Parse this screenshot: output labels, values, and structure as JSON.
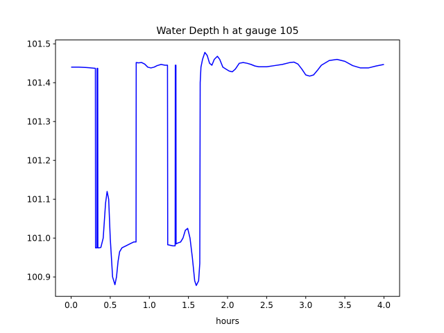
{
  "chart_data": {
    "type": "line",
    "title": "Water Depth h at gauge 105",
    "xlabel": "hours",
    "ylabel": "",
    "xlim": [
      -0.2,
      4.2
    ],
    "ylim": [
      100.85,
      101.51
    ],
    "xticks": [
      "0.0",
      "0.5",
      "1.0",
      "1.5",
      "2.0",
      "2.5",
      "3.0",
      "3.5",
      "4.0"
    ],
    "yticks": [
      "100.9",
      "101.0",
      "101.1",
      "101.2",
      "101.3",
      "101.4",
      "101.5"
    ],
    "grid": false,
    "legend": "none",
    "series": [
      {
        "color": "#0000ff",
        "x": [
          0.0,
          0.1,
          0.2,
          0.31,
          0.312,
          0.33,
          0.332,
          0.34,
          0.342,
          0.36,
          0.38,
          0.41,
          0.44,
          0.46,
          0.48,
          0.5,
          0.53,
          0.56,
          0.58,
          0.6,
          0.62,
          0.65,
          0.7,
          0.75,
          0.8,
          0.83,
          0.832,
          0.86,
          0.9,
          0.94,
          0.98,
          1.02,
          1.06,
          1.1,
          1.15,
          1.2,
          1.232,
          1.235,
          1.3,
          1.33,
          1.332,
          1.34,
          1.342,
          1.36,
          1.4,
          1.43,
          1.46,
          1.49,
          1.52,
          1.55,
          1.58,
          1.6,
          1.63,
          1.645,
          1.65,
          1.66,
          1.68,
          1.71,
          1.74,
          1.77,
          1.8,
          1.83,
          1.87,
          1.9,
          1.94,
          1.98,
          2.02,
          2.06,
          2.1,
          2.15,
          2.2,
          2.25,
          2.3,
          2.35,
          2.4,
          2.5,
          2.6,
          2.7,
          2.8,
          2.85,
          2.9,
          2.95,
          3.0,
          3.05,
          3.1,
          3.15,
          3.2,
          3.3,
          3.4,
          3.5,
          3.6,
          3.7,
          3.8,
          3.9,
          4.0
        ],
        "y": [
          101.44,
          101.44,
          101.439,
          101.437,
          100.975,
          100.975,
          101.437,
          101.437,
          100.975,
          100.975,
          100.976,
          101.0,
          101.09,
          101.12,
          101.1,
          101.0,
          100.9,
          100.88,
          100.9,
          100.94,
          100.965,
          100.975,
          100.98,
          100.985,
          100.99,
          100.99,
          101.452,
          101.451,
          101.452,
          101.448,
          101.44,
          101.438,
          101.44,
          101.444,
          101.447,
          101.445,
          101.445,
          100.983,
          100.98,
          100.98,
          101.445,
          101.445,
          100.985,
          100.987,
          100.99,
          101.0,
          101.02,
          101.025,
          101.0,
          100.95,
          100.89,
          100.878,
          100.89,
          100.935,
          101.4,
          101.44,
          101.46,
          101.478,
          101.47,
          101.45,
          101.445,
          101.46,
          101.468,
          101.46,
          101.44,
          101.435,
          101.43,
          101.428,
          101.435,
          101.45,
          101.452,
          101.45,
          101.447,
          101.443,
          101.441,
          101.441,
          101.444,
          101.447,
          101.452,
          101.453,
          101.448,
          101.435,
          101.42,
          101.417,
          101.42,
          101.432,
          101.445,
          101.457,
          101.46,
          101.455,
          101.444,
          101.438,
          101.438,
          101.443,
          101.447
        ]
      }
    ]
  }
}
